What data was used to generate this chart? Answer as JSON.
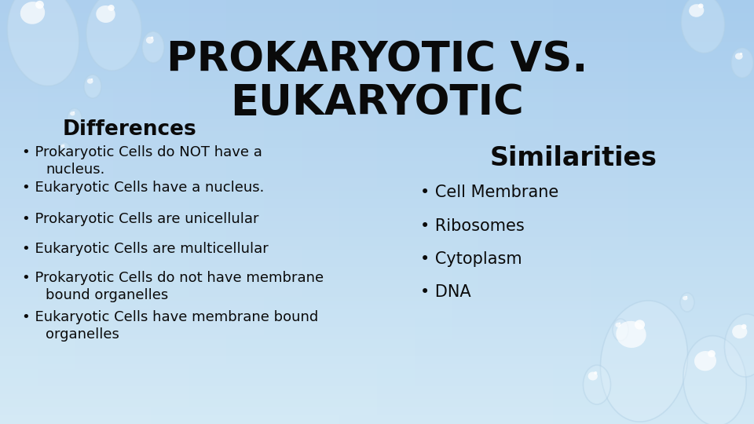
{
  "title_line1": "PROKARYOTIC VS.",
  "title_line2": "EUKARYOTIC",
  "title_fontsize": 38,
  "title_color": "#0a0a0a",
  "differences_header": "Differences",
  "differences_header_fontsize": 19,
  "differences_header_color": "#0a0a0a",
  "differences_items": [
    [
      "Prokaryotic Cells do NOT have a",
      "nucleus."
    ],
    [
      "Eukaryotic Cells have a nucleus.",
      ""
    ],
    [
      "Prokaryotic Cells are unicellular",
      ""
    ],
    [
      "Eukaryotic Cells are multicellular",
      ""
    ],
    [
      "Prokaryotic Cells do not have membrane",
      "bound organelles"
    ],
    [
      "Eukaryotic Cells have membrane bound",
      "organelles"
    ]
  ],
  "similarities_header": "Similarities",
  "similarities_header_fontsize": 21,
  "similarities_header_color": "#0a0a0a",
  "similarities_items": [
    "Cell Membrane",
    "Ribosomes",
    "Cytoplasm",
    "DNA"
  ],
  "bullet": "•",
  "body_fontsize": 13,
  "body_color": "#0a0a0a",
  "bg_color_tl": [
    0.82,
    0.91,
    0.96
  ],
  "bg_color_br": [
    0.58,
    0.75,
    0.88
  ],
  "bubble_edge_color": "#b0c8d8"
}
